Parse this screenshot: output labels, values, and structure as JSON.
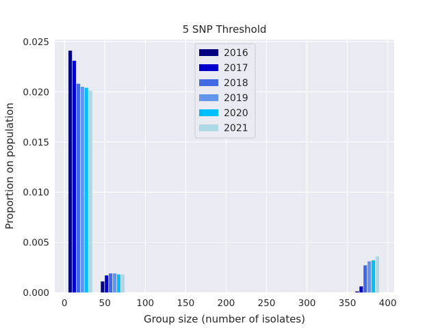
{
  "chart_data": {
    "type": "bar",
    "title": "5 SNP Threshold",
    "xlabel": "Group size (number of isolates)",
    "ylabel": "Proportion on population",
    "xlim": [
      -12,
      408
    ],
    "ylim": [
      0,
      0.0252
    ],
    "xticks": [
      0,
      50,
      100,
      150,
      200,
      250,
      300,
      350,
      400
    ],
    "yticks": [
      0.0,
      0.005,
      0.01,
      0.015,
      0.02,
      0.025
    ],
    "ytick_labels": [
      "0.000",
      "0.005",
      "0.010",
      "0.015",
      "0.020",
      "0.025"
    ],
    "xtick_labels": [
      "0",
      "50",
      "100",
      "150",
      "200",
      "250",
      "300",
      "350",
      "400"
    ],
    "grid": true,
    "legend_position": "top-center",
    "bin_centers": [
      20,
      60,
      375
    ],
    "bar_width": 5,
    "series": [
      {
        "name": "2016",
        "color": "#000080",
        "values": [
          0.0241,
          0.0011,
          0.0001
        ]
      },
      {
        "name": "2017",
        "color": "#0000CD",
        "values": [
          0.0231,
          0.0017,
          0.0006
        ]
      },
      {
        "name": "2018",
        "color": "#4169E1",
        "values": [
          0.0208,
          0.0019,
          0.0027
        ]
      },
      {
        "name": "2019",
        "color": "#6495ED",
        "values": [
          0.0205,
          0.0019,
          0.0031
        ]
      },
      {
        "name": "2020",
        "color": "#00BFFF",
        "values": [
          0.0204,
          0.0018,
          0.0032
        ]
      },
      {
        "name": "2021",
        "color": "#ADD8E6",
        "values": [
          0.0201,
          0.0018,
          0.0036
        ]
      }
    ]
  }
}
